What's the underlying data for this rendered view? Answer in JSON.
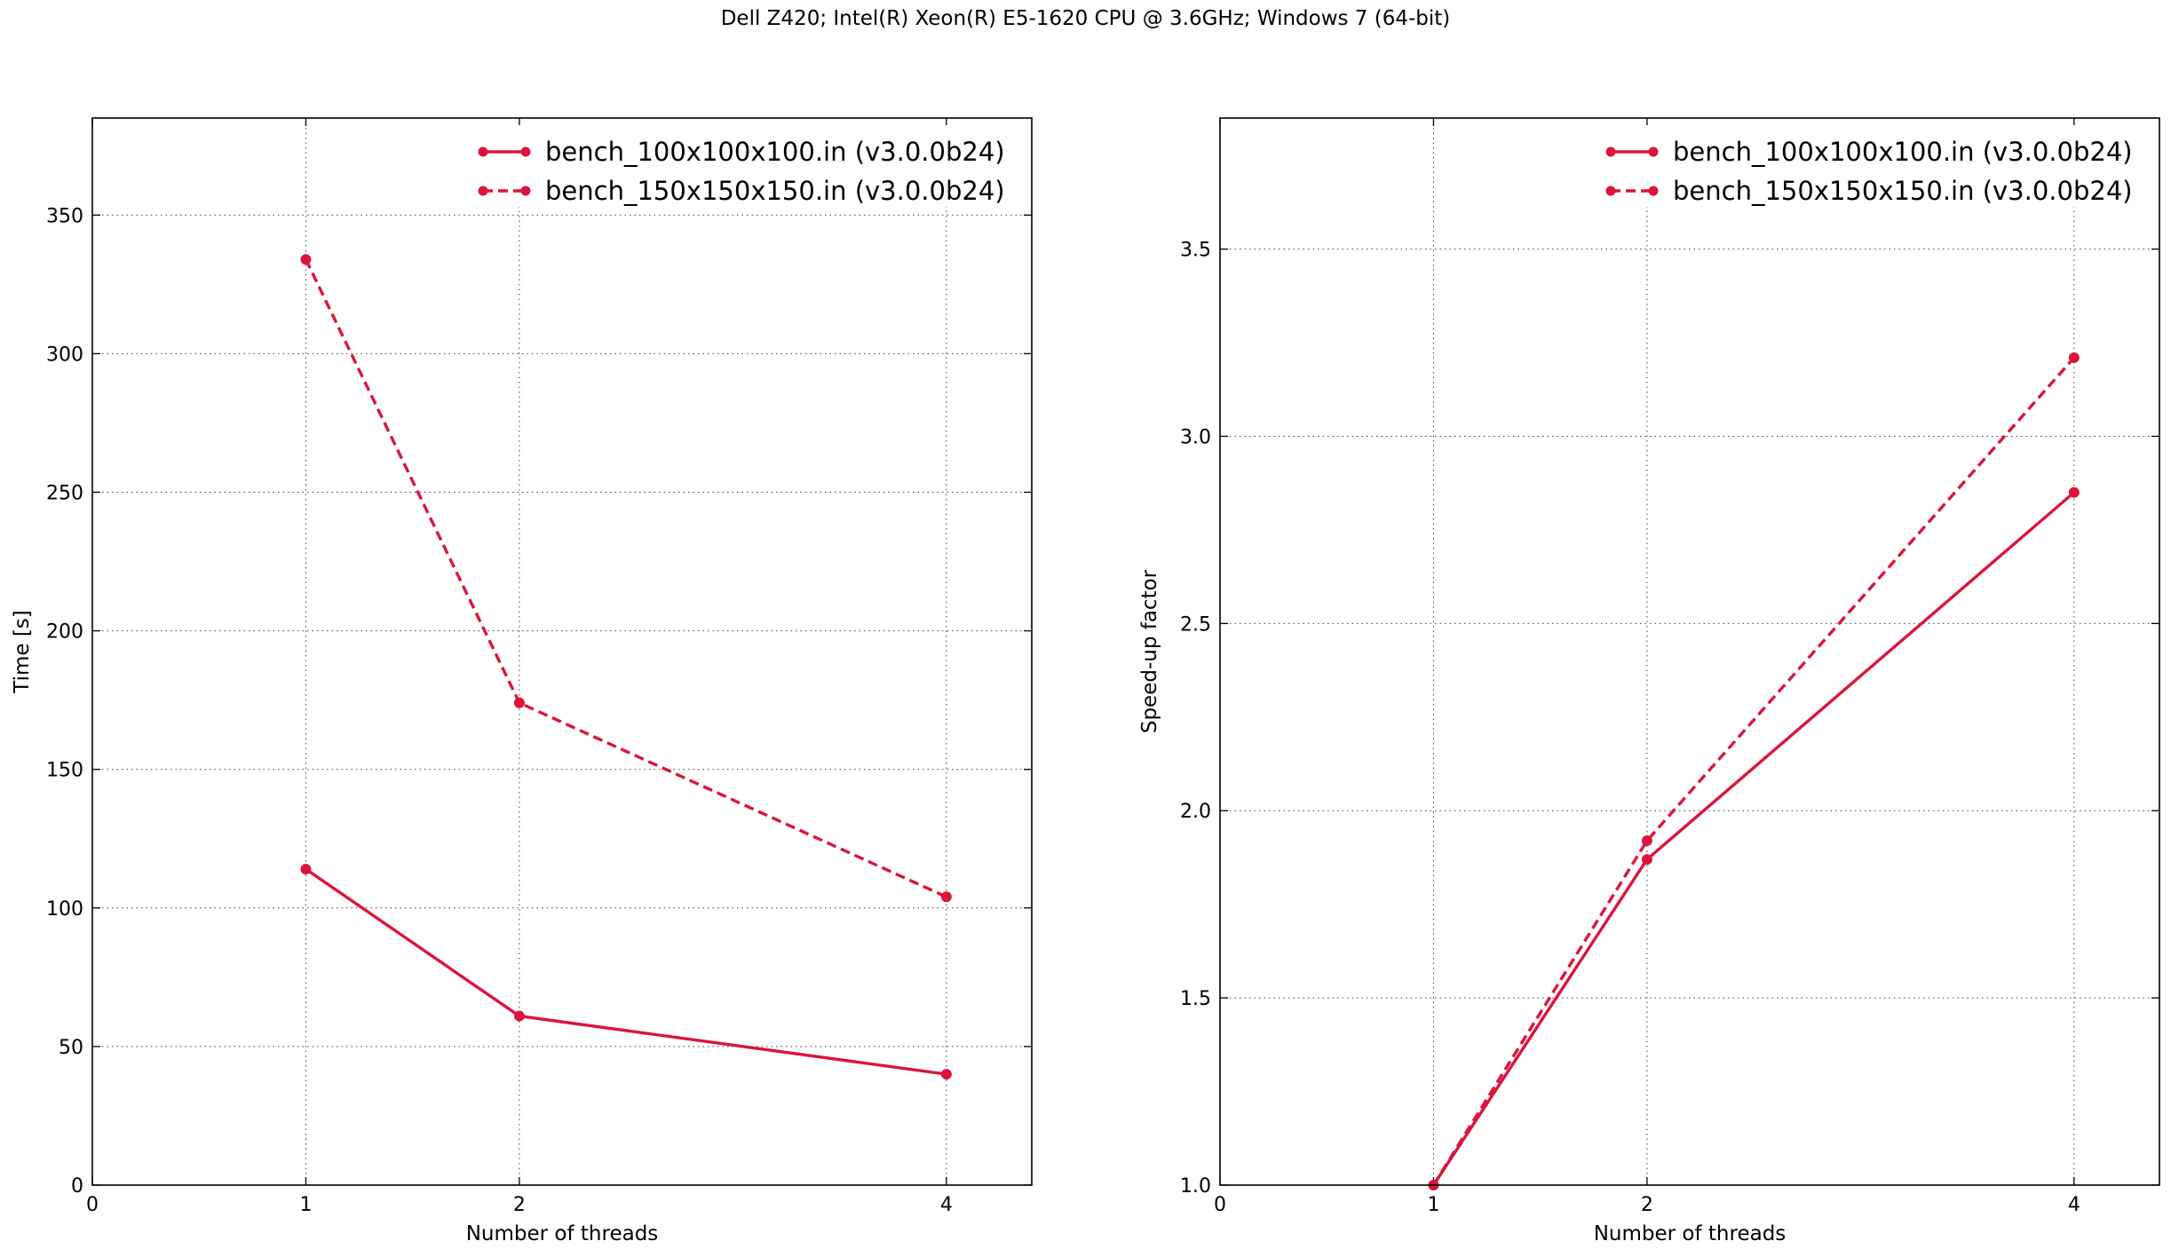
{
  "figure": {
    "title": "Dell Z420; Intel(R) Xeon(R) E5-1620 CPU @ 3.6GHz; Windows 7 (64-bit)"
  },
  "chart_data": [
    {
      "type": "line",
      "title": "",
      "xlabel": "Number of threads",
      "ylabel": "Time [s]",
      "xlim": [
        0,
        4.4
      ],
      "ylim": [
        0,
        385
      ],
      "xticks": [
        0,
        1,
        2,
        4
      ],
      "yticks": [
        0,
        50,
        100,
        150,
        200,
        250,
        300,
        350
      ],
      "grid": true,
      "legend_position": "top-right",
      "series": [
        {
          "name": "bench_100x100x100.in (v3.0.0b24)",
          "style": "solid",
          "color": "#dc143c",
          "x": [
            1,
            2,
            4
          ],
          "y": [
            114,
            61,
            40
          ]
        },
        {
          "name": "bench_150x150x150.in (v3.0.0b24)",
          "style": "dashed",
          "color": "#dc143c",
          "x": [
            1,
            2,
            4
          ],
          "y": [
            334,
            174,
            104
          ]
        }
      ]
    },
    {
      "type": "line",
      "title": "",
      "xlabel": "Number of threads",
      "ylabel": "Speed-up factor",
      "xlim": [
        0,
        4.4
      ],
      "ylim": [
        1.0,
        3.85
      ],
      "xticks": [
        0,
        1,
        2,
        4
      ],
      "yticks": [
        1.0,
        1.5,
        2.0,
        2.5,
        3.0,
        3.5
      ],
      "grid": true,
      "legend_position": "top-right",
      "series": [
        {
          "name": "bench_100x100x100.in (v3.0.0b24)",
          "style": "solid",
          "color": "#dc143c",
          "x": [
            1,
            2,
            4
          ],
          "y": [
            1.0,
            1.87,
            2.85
          ]
        },
        {
          "name": "bench_150x150x150.in (v3.0.0b24)",
          "style": "dashed",
          "color": "#dc143c",
          "x": [
            1,
            2,
            4
          ],
          "y": [
            1.0,
            1.92,
            3.21
          ]
        }
      ]
    }
  ]
}
